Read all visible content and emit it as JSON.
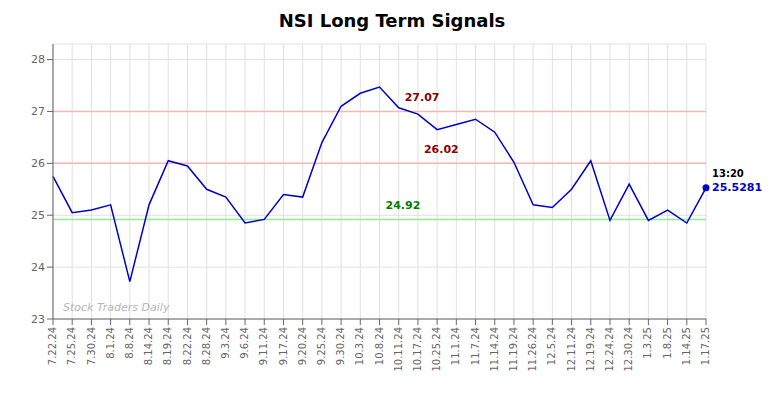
{
  "chart_data": {
    "type": "line",
    "title": "NSI Long Term Signals",
    "categories": [
      "7.22.24",
      "7.25.24",
      "7.30.24",
      "8.1.24",
      "8.8.24",
      "8.14.24",
      "8.19.24",
      "8.22.24",
      "8.28.24",
      "9.3.24",
      "9.6.24",
      "9.11.24",
      "9.17.24",
      "9.20.24",
      "9.25.24",
      "9.30.24",
      "10.3.24",
      "10.8.24",
      "10.11.24",
      "10.17.24",
      "10.25.24",
      "11.1.24",
      "11.7.24",
      "11.14.24",
      "11.19.24",
      "11.26.24",
      "12.5.24",
      "12.11.24",
      "12.19.24",
      "12.24.24",
      "12.30.24",
      "1.3.25",
      "1.8.25",
      "1.14.25",
      "1.17.25"
    ],
    "values": [
      25.75,
      25.05,
      25.1,
      25.2,
      23.72,
      25.2,
      26.05,
      25.95,
      25.5,
      25.35,
      24.85,
      24.92,
      25.4,
      25.35,
      26.4,
      27.1,
      27.35,
      27.47,
      27.07,
      26.95,
      26.65,
      26.75,
      26.85,
      26.6,
      26.02,
      25.2,
      25.15,
      25.5,
      26.05,
      24.9,
      25.6,
      24.9,
      25.1,
      24.85,
      25.5281
    ],
    "color": "#0000cc",
    "marker": "last",
    "ylim": [
      23.0,
      28.3
    ],
    "yticks": [
      23,
      24,
      25,
      26,
      27,
      28
    ],
    "grid": true,
    "hlines": [
      {
        "value": 27.0,
        "color": "#ffb3b3"
      },
      {
        "value": 26.0,
        "color": "#ffb3b3"
      },
      {
        "value": 24.92,
        "color": "#90EE90"
      }
    ],
    "annotations": [
      {
        "text": "27.07",
        "color": "#8B0000",
        "category": "10.11.24",
        "y": 27.2
      },
      {
        "text": "26.02",
        "color": "#8B0000",
        "category": "10.17.24",
        "y": 26.2
      },
      {
        "text": "24.92",
        "color": "#008000",
        "category": "10.8.24",
        "y": 25.12
      }
    ],
    "point_labels": [
      {
        "text": "13:20",
        "color": "#000000"
      },
      {
        "text": "25.5281",
        "color": "#0000cc"
      }
    ],
    "watermark": {
      "text": "Stock Traders Daily",
      "color": "#aaaaaa"
    }
  }
}
